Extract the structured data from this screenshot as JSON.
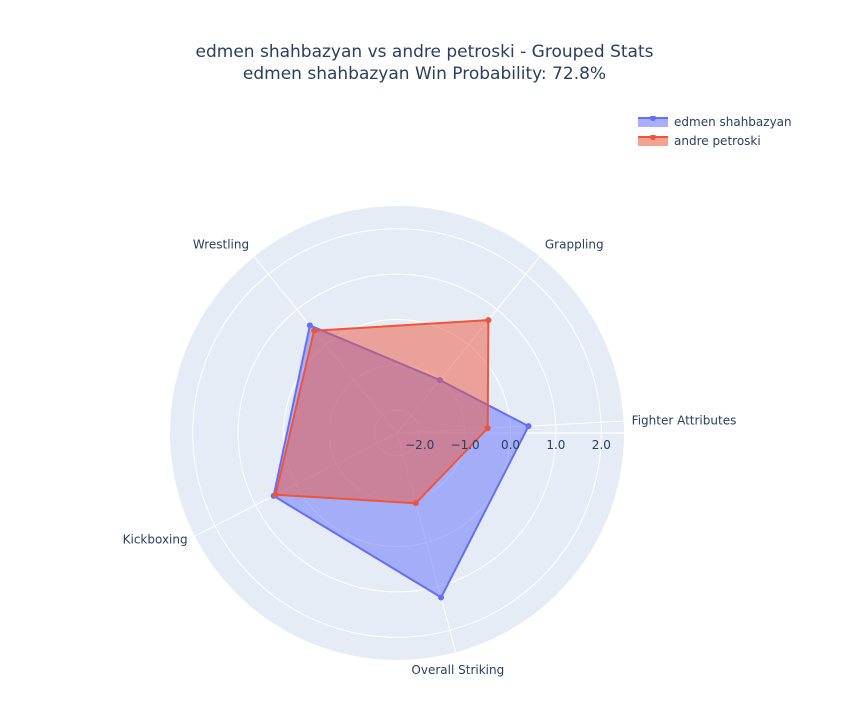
{
  "title_line1": "edmen shahbazyan vs andre petroski - Grouped Stats",
  "title_line2": "edmen shahbazyan Win Probability: 72.8%",
  "chart_data": {
    "type": "radar",
    "categories": [
      "Fighter Attributes",
      "Overall Striking",
      "Kickboxing",
      "Wrestling",
      "Grappling"
    ],
    "radial_ticks": [
      "−2.0",
      "−1.0",
      "0.0",
      "1.0",
      "2.0"
    ],
    "radial_tick_values": [
      -2,
      -1,
      0,
      1,
      2
    ],
    "radial_range": [
      -2.5,
      2.5
    ],
    "grid": true,
    "legend_position": "top-right",
    "series": [
      {
        "name": "edmen shahbazyan",
        "color": "#636efa",
        "values": [
          0.4,
          1.25,
          0.55,
          0.55,
          -1.0
        ]
      },
      {
        "name": "andre petroski",
        "color": "#ef553b",
        "values": [
          -0.5,
          -0.9,
          0.5,
          0.4,
          0.7
        ]
      }
    ]
  }
}
